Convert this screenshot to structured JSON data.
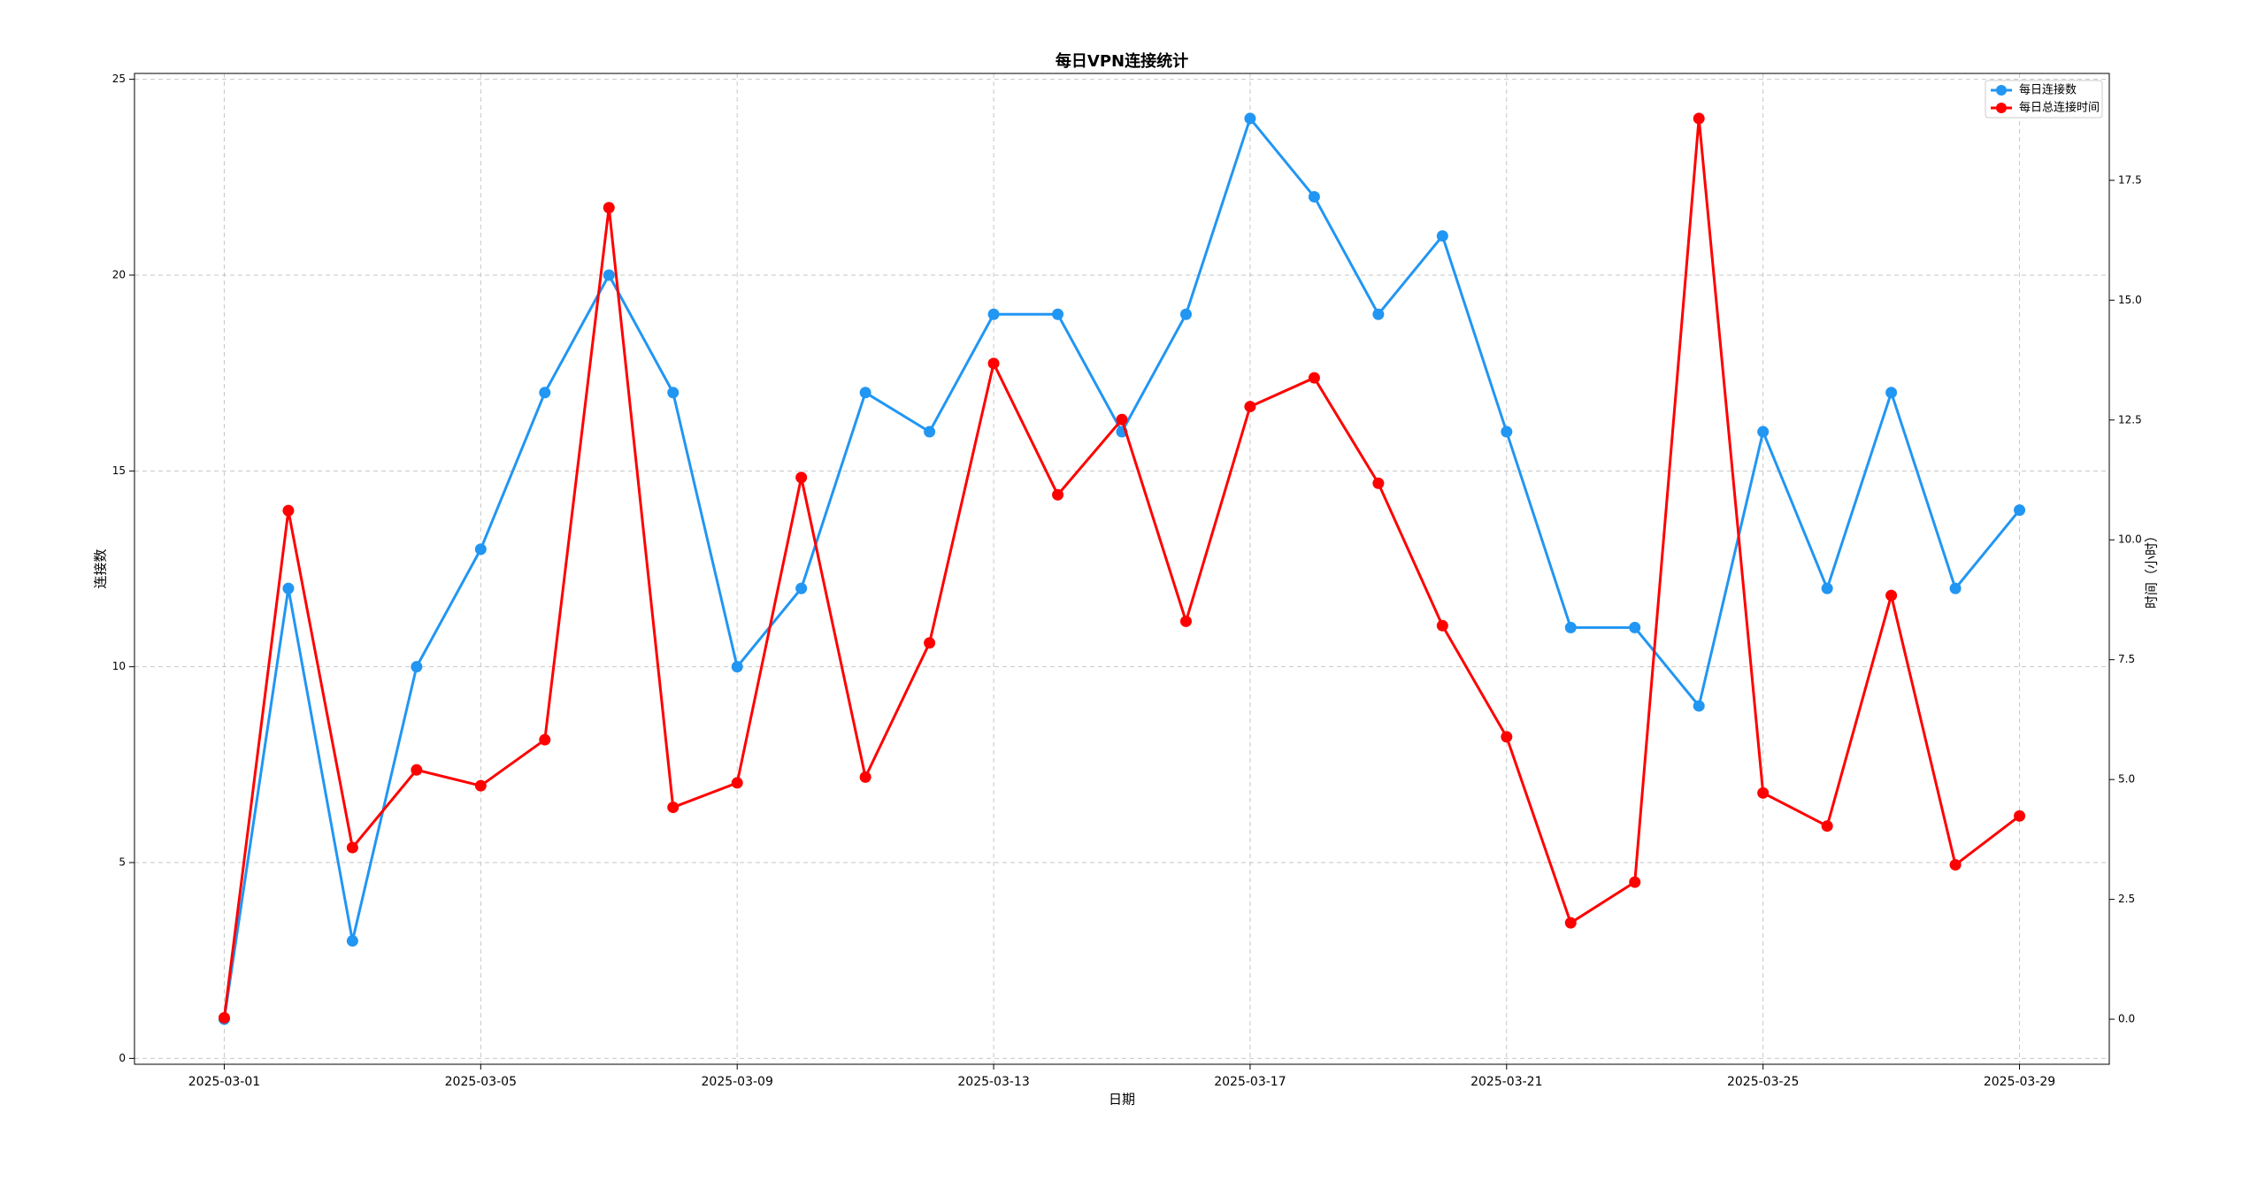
{
  "chart_data": {
    "type": "line",
    "title": "每日VPN连接统计",
    "x_label": "日期",
    "y_label": "连接数",
    "y2_label": "时间（小时）",
    "x": [
      "2025-03-01",
      "2025-03-02",
      "2025-03-03",
      "2025-03-04",
      "2025-03-05",
      "2025-03-06",
      "2025-03-07",
      "2025-03-08",
      "2025-03-09",
      "2025-03-10",
      "2025-03-11",
      "2025-03-12",
      "2025-03-13",
      "2025-03-14",
      "2025-03-15",
      "2025-03-16",
      "2025-03-17",
      "2025-03-18",
      "2025-03-19",
      "2025-03-20",
      "2025-03-21",
      "2025-03-22",
      "2025-03-23",
      "2025-03-24",
      "2025-03-25",
      "2025-03-26",
      "2025-03-27",
      "2025-03-28",
      "2025-03-29"
    ],
    "series": [
      {
        "name": "每日连接数",
        "color": "#2196f3",
        "values": [
          1,
          12,
          3,
          10,
          13,
          17,
          20,
          17,
          10,
          12,
          17,
          16,
          19,
          19,
          16,
          19,
          24,
          22,
          19,
          21,
          16,
          11,
          11,
          9,
          16,
          12,
          17,
          12,
          14
        ]
      },
      {
        "name": "每日总连接时间",
        "color": "#ff0000",
        "axis": "y2",
        "values": [
          0.03,
          10.61,
          3.58,
          5.2,
          4.87,
          5.83,
          16.93,
          4.42,
          4.93,
          11.3,
          5.05,
          7.85,
          13.68,
          10.94,
          12.51,
          8.3,
          12.78,
          13.38,
          11.18,
          8.21,
          5.89,
          2.01,
          2.86,
          18.79,
          4.72,
          4.03,
          8.84,
          3.22,
          4.24
        ]
      }
    ],
    "xlim": [
      "2025-02-27T14:24",
      "2025-03-30T09:36"
    ],
    "xticks": [
      "2025-03-01",
      "2025-03-05",
      "2025-03-09",
      "2025-03-13",
      "2025-03-17",
      "2025-03-21",
      "2025-03-25",
      "2025-03-29"
    ],
    "ylim": [
      -0.15,
      25.15
    ],
    "yticks": [
      0,
      5,
      10,
      15,
      20,
      25
    ],
    "y2lim": [
      -0.94,
      19.73
    ],
    "y2ticks": [
      {
        "value": 0,
        "label": "0.0"
      },
      2.5,
      {
        "value": 5,
        "label": "5.0"
      },
      7.5,
      {
        "value": 10,
        "label": "10.0"
      },
      12.5,
      {
        "value": 15,
        "label": "15.0"
      },
      17.5
    ],
    "grid": true,
    "legend": "upper right"
  }
}
